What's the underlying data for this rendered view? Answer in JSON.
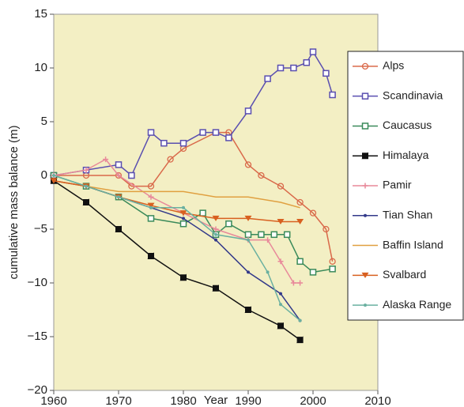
{
  "chart_data": {
    "type": "line",
    "x_label": "Year",
    "y_label": "cumulative mass balance (m)",
    "xlim": [
      1960,
      2010
    ],
    "xticks": [
      1960,
      1970,
      1980,
      1990,
      2000,
      2010
    ],
    "ylim": [
      -20,
      15
    ],
    "yticks": [
      {
        "value": -20,
        "label": "−20"
      },
      {
        "value": -15,
        "label": "−15"
      },
      {
        "value": -10,
        "label": "−10"
      },
      {
        "value": -5,
        "label": "−5"
      },
      0,
      5,
      10,
      15
    ],
    "background": "#f3efc4",
    "legend": "right",
    "series": [
      {
        "name": "Alps",
        "color": "#d9694a",
        "marker": "circle",
        "x": [
          1960,
          1965,
          1970,
          1972,
          1975,
          1978,
          1980,
          1985,
          1987,
          1990,
          1992,
          1995,
          1998,
          2000,
          2002,
          2003
        ],
        "values": [
          0,
          0,
          0,
          -1,
          -1,
          1.5,
          2.5,
          4,
          4,
          1,
          0,
          -1,
          -2.5,
          -3.5,
          -5,
          -8
        ]
      },
      {
        "name": "Scandinavia",
        "color": "#5a4fb0",
        "marker": "square",
        "x": [
          1960,
          1965,
          1970,
          1972,
          1975,
          1977,
          1980,
          1983,
          1985,
          1987,
          1990,
          1993,
          1995,
          1997,
          1999,
          2000,
          2002,
          2003
        ],
        "values": [
          0,
          0.5,
          1,
          0,
          4,
          3,
          3,
          4,
          4,
          3.5,
          6,
          9,
          10,
          10,
          10.5,
          11.5,
          9.5,
          7.5
        ]
      },
      {
        "name": "Caucasus",
        "color": "#3a8a5a",
        "marker": "square",
        "x": [
          1960,
          1965,
          1970,
          1975,
          1980,
          1983,
          1985,
          1987,
          1990,
          1992,
          1994,
          1996,
          1998,
          2000,
          2003
        ],
        "values": [
          0,
          -1,
          -2,
          -4,
          -4.5,
          -3.5,
          -5.5,
          -4.5,
          -5.5,
          -5.5,
          -5.5,
          -5.5,
          -8,
          -9,
          -8.7
        ]
      },
      {
        "name": "Himalaya",
        "color": "#111111",
        "marker": "halfsquare",
        "x": [
          1960,
          1965,
          1970,
          1975,
          1980,
          1985,
          1990,
          1995,
          1998
        ],
        "values": [
          -0.5,
          -2.5,
          -5,
          -7.5,
          -9.5,
          -10.5,
          -12.5,
          -14,
          -15.3
        ]
      },
      {
        "name": "Pamir",
        "color": "#e8899a",
        "marker": "plus",
        "x": [
          1960,
          1965,
          1968,
          1970,
          1975,
          1980,
          1985,
          1990,
          1993,
          1995,
          1997,
          1998
        ],
        "values": [
          0,
          0.5,
          1.5,
          0,
          -2,
          -3.5,
          -5,
          -6,
          -6,
          -8,
          -10,
          -10
        ]
      },
      {
        "name": "Tian Shan",
        "color": "#333a8a",
        "marker": "dot",
        "x": [
          1960,
          1965,
          1970,
          1975,
          1980,
          1985,
          1990,
          1995,
          1998
        ],
        "values": [
          -0.5,
          -1,
          -2,
          -3,
          -4,
          -6,
          -9,
          -11,
          -13.5
        ]
      },
      {
        "name": "Baffin Island",
        "color": "#e0a040",
        "marker": "none",
        "x": [
          1960,
          1965,
          1970,
          1975,
          1980,
          1985,
          1990,
          1995,
          1998
        ],
        "values": [
          -0.5,
          -1,
          -1.5,
          -1.5,
          -1.5,
          -2,
          -2,
          -2.5,
          -3
        ]
      },
      {
        "name": "Svalbard",
        "color": "#d86020",
        "marker": "triangle",
        "x": [
          1960,
          1965,
          1970,
          1975,
          1980,
          1985,
          1990,
          1995,
          1998
        ],
        "values": [
          -0.5,
          -1,
          -2,
          -2.8,
          -3.5,
          -4,
          -4,
          -4.3,
          -4.3
        ]
      },
      {
        "name": "Alaska Range",
        "color": "#6ab0a0",
        "marker": "dot",
        "x": [
          1960,
          1965,
          1970,
          1975,
          1980,
          1985,
          1990,
          1993,
          1995,
          1998
        ],
        "values": [
          0,
          -1,
          -2,
          -3,
          -3,
          -5.5,
          -6,
          -9,
          -12,
          -13.5
        ]
      }
    ]
  }
}
